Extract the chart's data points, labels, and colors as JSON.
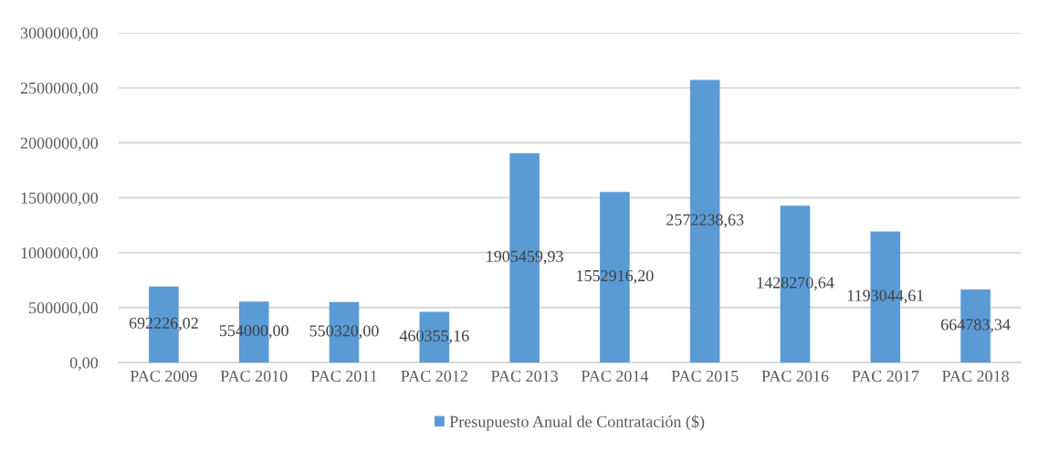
{
  "chart_data": {
    "type": "bar",
    "categories": [
      "PAC 2009",
      "PAC 2010",
      "PAC 2011",
      "PAC 2012",
      "PAC 2013",
      "PAC 2014",
      "PAC 2015",
      "PAC 2016",
      "PAC 2017",
      "PAC 2018"
    ],
    "series": [
      {
        "name": "Presupuesto Anual de Contratación ($)",
        "color": "#5b9bd5",
        "values": [
          692226.02,
          554000.0,
          550320.0,
          460355.16,
          1905459.93,
          1552916.2,
          2572238.63,
          1428270.64,
          1193044.61,
          664783.34
        ],
        "value_labels": [
          "692226,02",
          "554000,00",
          "550320,00",
          "460355,16",
          "1905459,93",
          "1552916,20",
          "2572238,63",
          "1428270,64",
          "1193044,61",
          "664783,34"
        ]
      }
    ],
    "ylim": [
      0,
      3000000
    ],
    "yticks": [
      {
        "value": 0,
        "label": "0,00"
      },
      {
        "value": 500000,
        "label": "500000,00"
      },
      {
        "value": 1000000,
        "label": "1000000,00"
      },
      {
        "value": 1500000,
        "label": "1500000,00"
      },
      {
        "value": 2000000,
        "label": "2000000,00"
      },
      {
        "value": 2500000,
        "label": "2500000,00"
      },
      {
        "value": 3000000,
        "label": "3000000,00"
      }
    ],
    "grid": "y",
    "legend": "bottom"
  }
}
